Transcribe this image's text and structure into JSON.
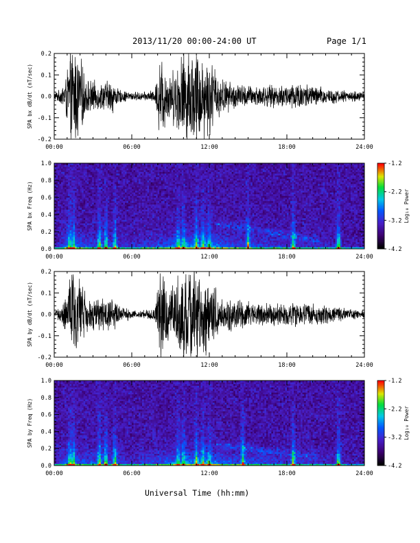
{
  "header": {
    "title": "2013/11/20  00:00-24:00 UT",
    "page": "Page 1/1"
  },
  "x_axis_title": "Universal Time (hh:mm)",
  "chart_data": [
    {
      "type": "line",
      "ylabel": "SPA bx dB/dt (nT/sec)",
      "xlim": [
        "00:00",
        "24:00"
      ],
      "x_ticks": [
        "00:00",
        "06:00",
        "12:00",
        "18:00",
        "24:00"
      ],
      "ylim": [
        -0.2,
        0.2
      ],
      "y_ticks": [
        "0.2",
        "0.1",
        "0.0",
        "-0.1",
        "-0.2"
      ],
      "color": "#000000",
      "series": [
        {
          "x_hours": [
            0,
            0.5,
            1.0,
            1.3,
            1.8,
            2.5,
            3.5,
            4.5,
            5.0,
            6.0,
            7.0,
            7.8,
            8.2,
            9.0,
            10.0,
            11.0,
            12.0,
            13.0,
            14.0,
            15.0,
            16.0,
            17.5,
            18.8,
            20.0,
            22.0,
            24.0
          ],
          "amplitude": [
            0.02,
            0.03,
            0.12,
            0.22,
            0.22,
            0.08,
            0.06,
            0.08,
            0.03,
            0.02,
            0.02,
            0.03,
            0.2,
            0.1,
            0.22,
            0.22,
            0.18,
            0.08,
            0.06,
            0.05,
            0.05,
            0.05,
            0.07,
            0.05,
            0.03,
            0.02
          ]
        }
      ]
    },
    {
      "type": "heatmap",
      "ylabel": "SPA bx Freq (Hz)",
      "xlim": [
        "00:00",
        "24:00"
      ],
      "x_ticks": [
        "00:00",
        "06:00",
        "12:00",
        "18:00",
        "24:00"
      ],
      "ylim": [
        0.0,
        1.0
      ],
      "y_ticks": [
        "1.0",
        "0.8",
        "0.6",
        "0.4",
        "0.2",
        "0.0"
      ],
      "colorbar": {
        "label": "Log₁₀ Power",
        "range": [
          -4.2,
          -1.2
        ],
        "ticks": [
          "-1.2",
          "-2.2",
          "-3.2",
          "-4.2"
        ]
      },
      "features": {
        "bright_times_hours": [
          1.2,
          1.5,
          3.5,
          4.0,
          4.7,
          9.6,
          10.0,
          11.0,
          11.5,
          12.0,
          15.0,
          18.5,
          22.0
        ],
        "arc_band_hz_range": [
          0.1,
          0.3
        ]
      }
    },
    {
      "type": "line",
      "ylabel": "SPA by dB/dt (nT/sec)",
      "xlim": [
        "00:00",
        "24:00"
      ],
      "x_ticks": [
        "00:00",
        "06:00",
        "12:00",
        "18:00",
        "24:00"
      ],
      "ylim": [
        -0.2,
        0.2
      ],
      "y_ticks": [
        "0.2",
        "0.1",
        "0.0",
        "-0.1",
        "-0.2"
      ],
      "color": "#000000",
      "series": [
        {
          "x_hours": [
            0,
            0.5,
            1.0,
            1.3,
            1.8,
            2.5,
            3.5,
            4.5,
            5.0,
            6.0,
            7.0,
            7.8,
            8.2,
            9.0,
            10.0,
            11.0,
            12.0,
            13.0,
            14.0,
            15.0,
            16.0,
            17.5,
            18.8,
            20.0,
            22.0,
            24.0
          ],
          "amplitude": [
            0.02,
            0.03,
            0.12,
            0.2,
            0.2,
            0.08,
            0.07,
            0.09,
            0.04,
            0.02,
            0.02,
            0.03,
            0.2,
            0.12,
            0.22,
            0.22,
            0.16,
            0.08,
            0.07,
            0.06,
            0.05,
            0.05,
            0.06,
            0.05,
            0.03,
            0.02
          ]
        }
      ]
    },
    {
      "type": "heatmap",
      "ylabel": "SPA by Freq (Hz)",
      "xlim": [
        "00:00",
        "24:00"
      ],
      "x_ticks": [
        "00:00",
        "06:00",
        "12:00",
        "18:00",
        "24:00"
      ],
      "ylim": [
        0.0,
        1.0
      ],
      "y_ticks": [
        "1.0",
        "0.8",
        "0.6",
        "0.4",
        "0.2",
        "0.0"
      ],
      "colorbar": {
        "label": "Log₁₀ Power",
        "range": [
          -4.2,
          -1.2
        ],
        "ticks": [
          "-1.2",
          "-2.2",
          "-3.2",
          "-4.2"
        ]
      },
      "features": {
        "bright_times_hours": [
          1.2,
          1.5,
          3.5,
          4.0,
          4.7,
          9.6,
          10.0,
          11.0,
          11.5,
          12.0,
          14.6,
          18.5,
          22.0
        ],
        "arc_band_hz_range": [
          0.1,
          0.25
        ]
      }
    }
  ]
}
